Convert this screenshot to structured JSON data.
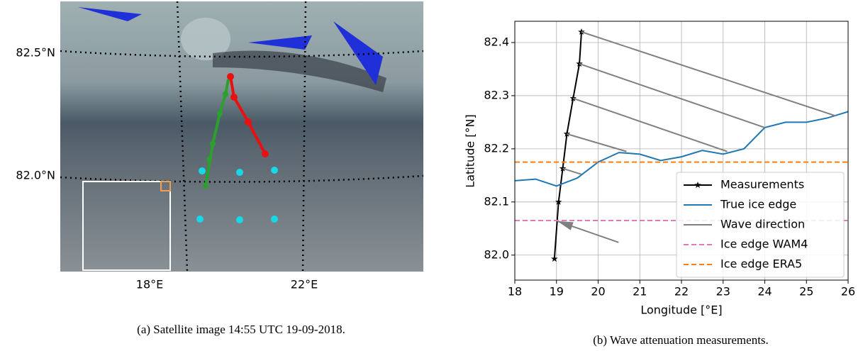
{
  "panel_a": {
    "lat_labels": [
      "82.5°N",
      "82.0°N"
    ],
    "lon_labels": [
      "18°E",
      "22°E"
    ],
    "caption": "(a) Satellite image 14:55 UTC 19-09-2018."
  },
  "chart_data": {
    "type": "line",
    "caption": "(b) Wave attenuation measurements.",
    "x_label": "Longitude [°E]",
    "y_label": "Latitude [°N]",
    "xlim": [
      18,
      26
    ],
    "ylim": [
      81.953,
      82.44
    ],
    "xticks": [
      18,
      19,
      20,
      21,
      22,
      23,
      24,
      25,
      26
    ],
    "yticks": [
      {
        "value": 82,
        "label": "82.0"
      },
      82.1,
      82.2,
      82.3,
      82.4
    ],
    "grid": true,
    "legend": "lower right",
    "series": [
      {
        "name": "Measurements",
        "color": "#000000",
        "marker": "star",
        "x": [
          19.6,
          19.55,
          19.4,
          19.25,
          19.15,
          19.05,
          18.95
        ],
        "values": [
          82.42,
          82.36,
          82.295,
          82.228,
          82.163,
          82.1,
          81.993
        ]
      },
      {
        "name": "True ice edge",
        "color": "#1f77b4",
        "x": [
          18,
          18.5,
          19,
          19.5,
          20,
          20.5,
          21,
          21.5,
          22,
          22.5,
          23,
          23.5,
          24,
          24.5,
          25,
          25.5,
          26
        ],
        "values": [
          82.14,
          82.143,
          82.13,
          82.145,
          82.175,
          82.193,
          82.19,
          82.178,
          82.185,
          82.197,
          82.19,
          82.2,
          82.24,
          82.25,
          82.25,
          82.258,
          82.27
        ]
      },
      {
        "name": "Wave direction",
        "color": "#808080",
        "arrow": true,
        "x": [
          19.6,
          25.7,
          null,
          19.55,
          24,
          null,
          19.4,
          23.1,
          null,
          19.25,
          20.68,
          null,
          19.15,
          19.6,
          null,
          20.49,
          19.02
        ],
        "values": [
          82.42,
          82.262,
          null,
          82.36,
          82.24,
          null,
          82.295,
          82.195,
          null,
          82.228,
          82.195,
          null,
          82.163,
          82.152,
          null,
          82.024,
          82.064
        ]
      },
      {
        "name": "Ice edge WAM4",
        "color": "#e377c2",
        "kind": "hline",
        "dashed": true,
        "values": [
          82.065
        ]
      },
      {
        "name": "Ice edge ERA5",
        "color": "#ff7f0e",
        "kind": "hline",
        "dashed": true,
        "values": [
          82.175
        ]
      }
    ]
  }
}
